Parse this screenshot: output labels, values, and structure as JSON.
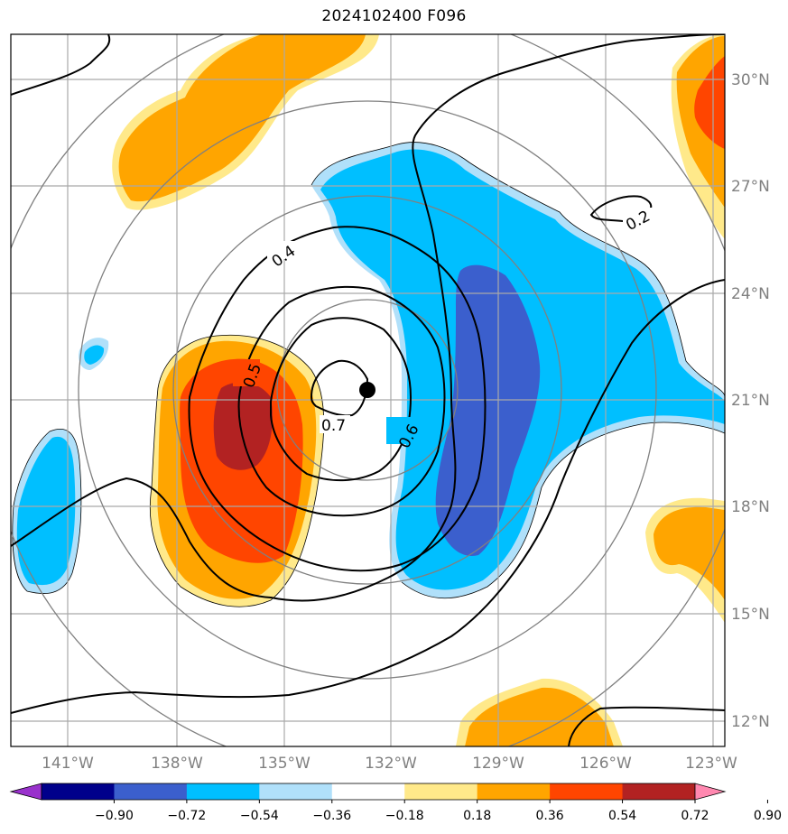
{
  "title": "2024102400 F096",
  "map": {
    "lon_labels": [
      "141°W",
      "138°W",
      "135°W",
      "132°W",
      "129°W",
      "126°W",
      "123°W"
    ],
    "lat_labels": [
      "30°N",
      "27°N",
      "24°N",
      "21°N",
      "18°N",
      "15°N",
      "12°N"
    ],
    "contour_labels": [
      "0.2",
      "0.4",
      "0.5",
      "0.6",
      "0.7"
    ],
    "center_marker": "storm-center"
  },
  "colorbar": {
    "ticks": [
      "−0.90",
      "−0.72",
      "−0.54",
      "−0.36",
      "−0.18",
      "0.18",
      "0.36",
      "0.54",
      "0.72",
      "0.90"
    ],
    "colors": [
      "#9932cc",
      "#00008b",
      "#3b5fcd",
      "#00bfff",
      "#b0e0fa",
      "#ffffff",
      "#ffe98a",
      "#ffa500",
      "#ff4500",
      "#b22222",
      "#ff88b0"
    ]
  }
}
